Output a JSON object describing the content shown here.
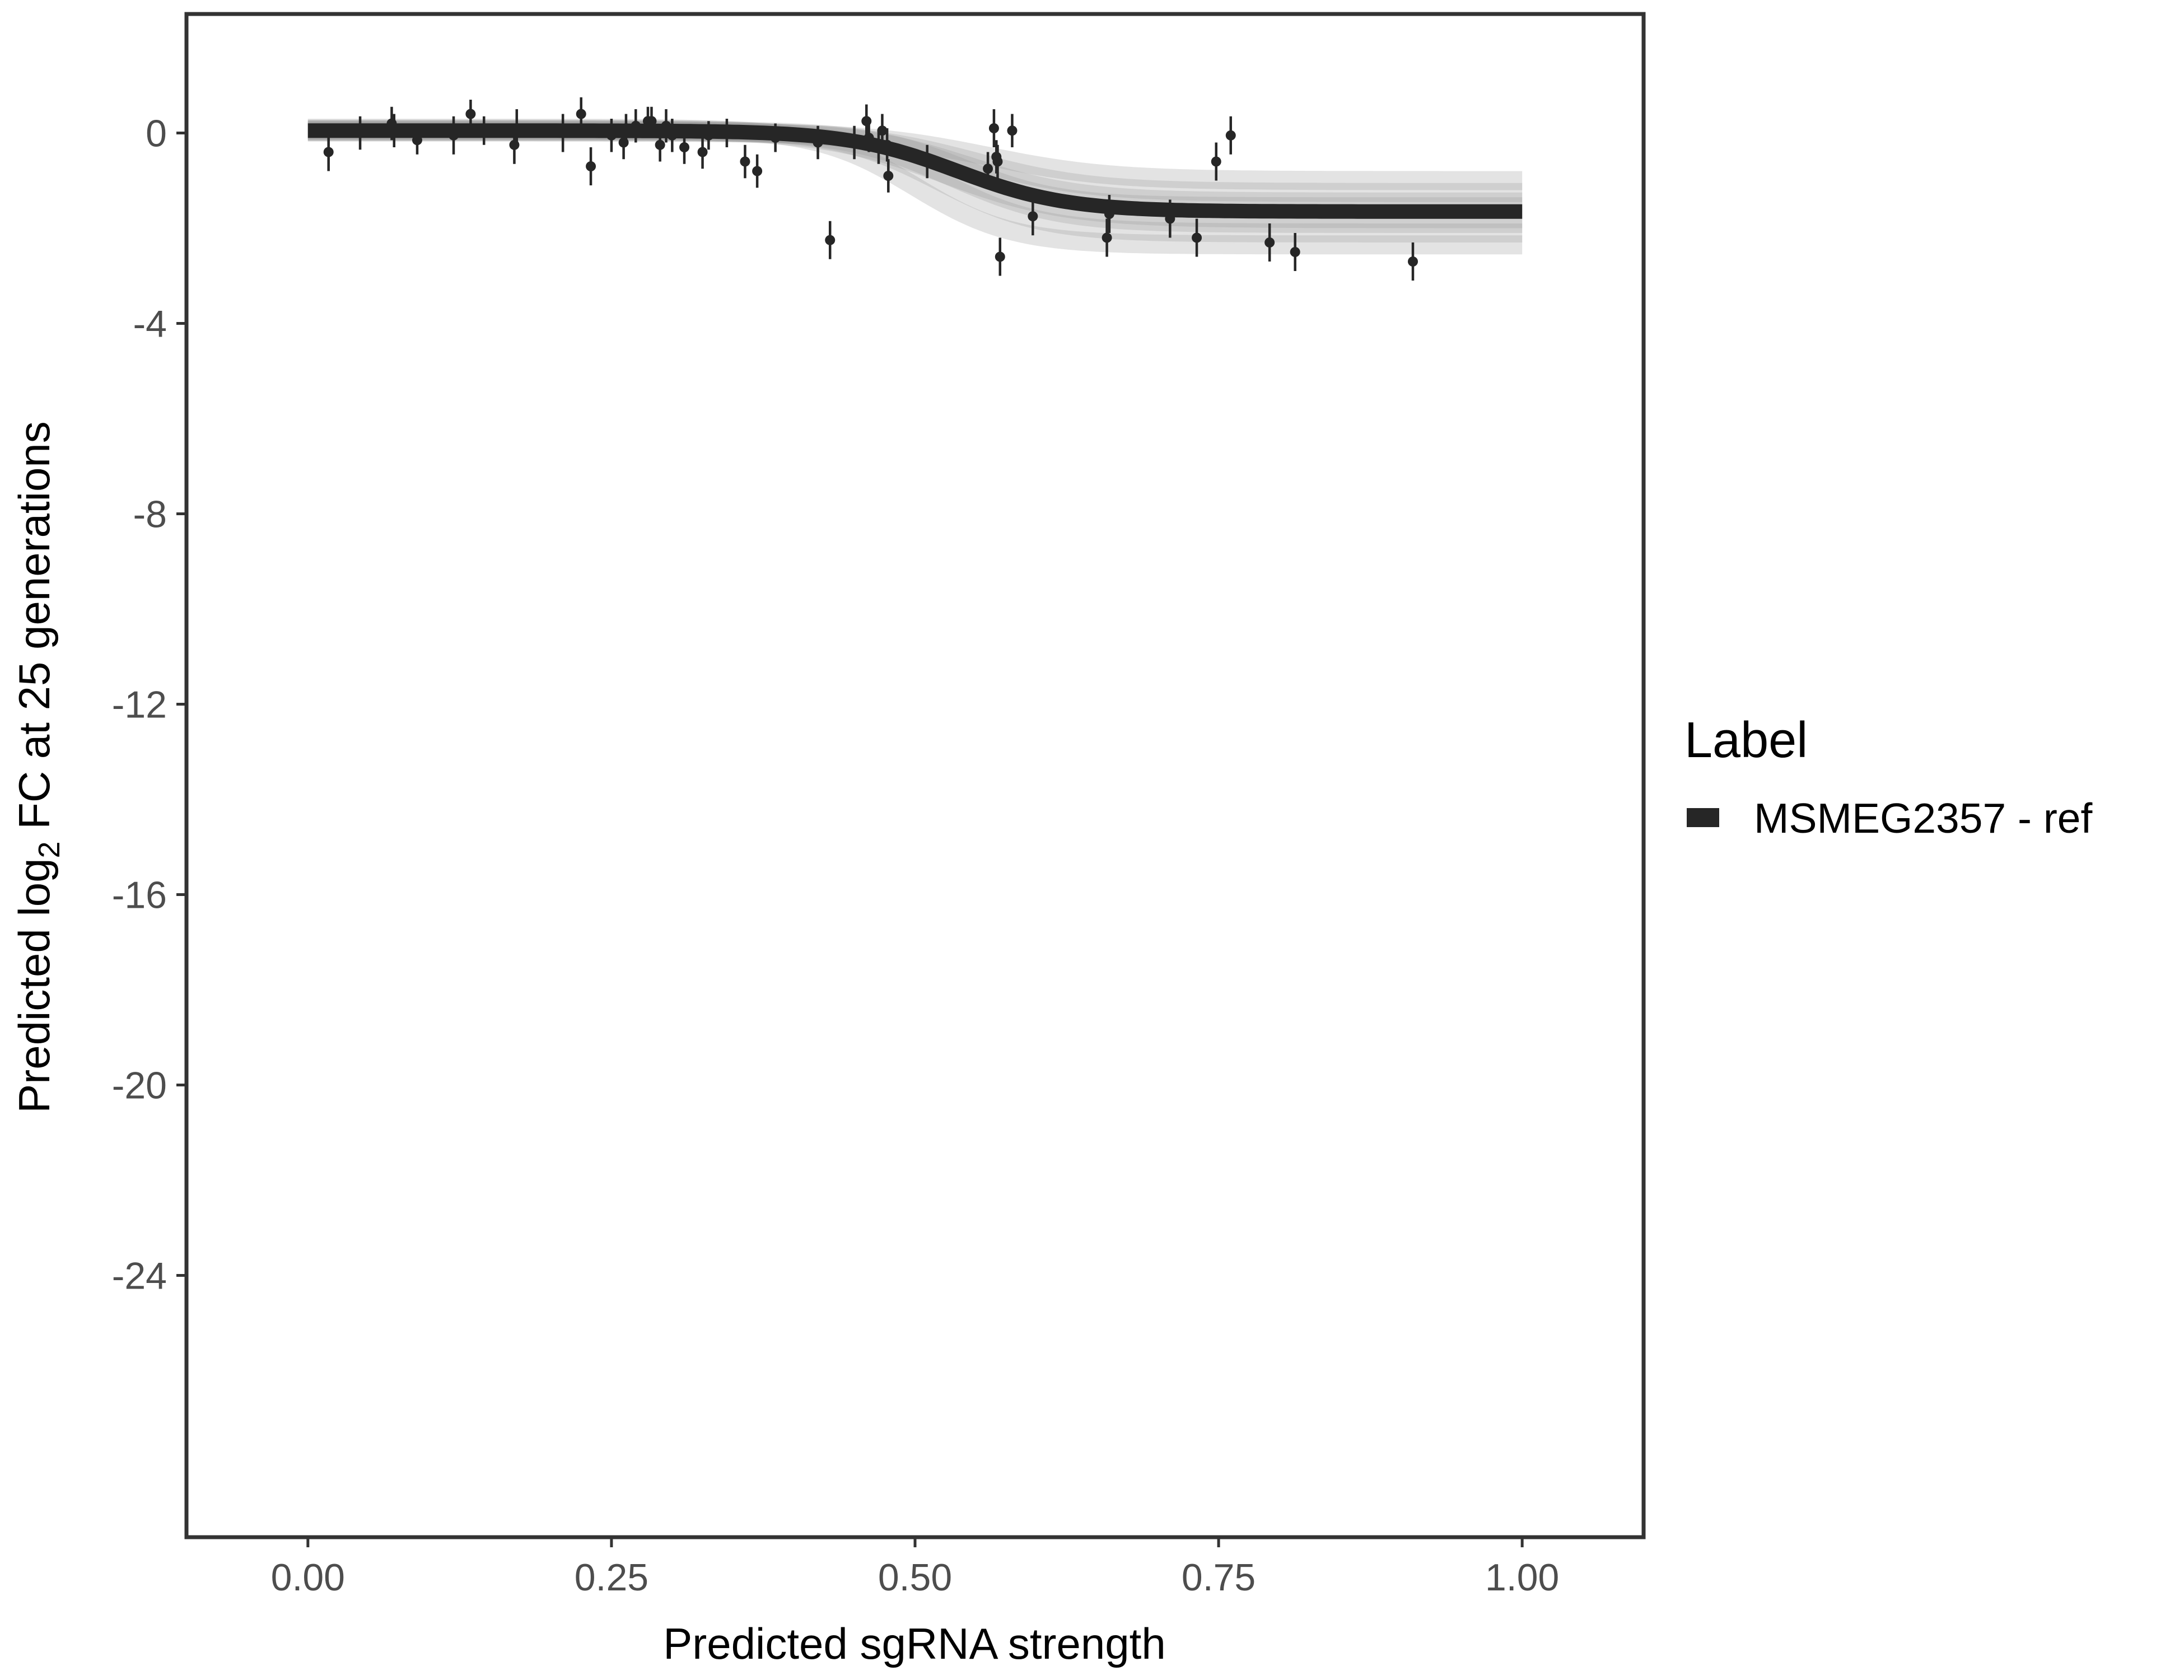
{
  "chart_data": {
    "type": "scatter",
    "title": "",
    "xlabel": "Predicted sgRNA strength",
    "ylabel_prefix": "Predicted  log",
    "ylabel_sub": "2",
    "ylabel_suffix": " FC at 25 generations",
    "xlim": [
      -0.1,
      1.1
    ],
    "ylim": [
      -29.5,
      2.5
    ],
    "x_ticks": [
      0.0,
      0.25,
      0.5,
      0.75,
      1.0
    ],
    "x_tick_labels": [
      "0.00",
      "0.25",
      "0.50",
      "0.75",
      "1.00"
    ],
    "y_ticks": [
      0,
      -4,
      -8,
      -12,
      -16,
      -20,
      -24
    ],
    "y_tick_labels": [
      "0",
      "-4",
      "-8",
      "-12",
      "-16",
      "-20",
      "-24"
    ],
    "grid": false,
    "legend": {
      "title": "Label",
      "position": "right",
      "entries": [
        {
          "name": "MSMEG2357 - ref",
          "color": "#262626"
        }
      ]
    },
    "fit_curve": {
      "model": "sigmoid",
      "upper": 0.05,
      "lower": -1.65,
      "midpoint": 0.535,
      "scale": 0.045,
      "x_range": [
        0.0,
        1.0
      ],
      "color": "#262626",
      "band_color": "#9a9a9a"
    },
    "series": [
      {
        "name": "MSMEG2357 - ref",
        "color": "#262626",
        "points": [
          {
            "x": 0.017,
            "y": -0.4,
            "err": 0.4
          },
          {
            "x": 0.043,
            "y": 0.0,
            "err": 0.35
          },
          {
            "x": 0.069,
            "y": 0.2,
            "err": 0.35
          },
          {
            "x": 0.071,
            "y": 0.05,
            "err": 0.35
          },
          {
            "x": 0.09,
            "y": -0.15,
            "err": 0.3
          },
          {
            "x": 0.12,
            "y": -0.05,
            "err": 0.4
          },
          {
            "x": 0.134,
            "y": 0.4,
            "err": 0.3
          },
          {
            "x": 0.145,
            "y": 0.05,
            "err": 0.3
          },
          {
            "x": 0.17,
            "y": -0.25,
            "err": 0.4
          },
          {
            "x": 0.172,
            "y": 0.1,
            "err": 0.4
          },
          {
            "x": 0.21,
            "y": 0.0,
            "err": 0.4
          },
          {
            "x": 0.225,
            "y": 0.4,
            "err": 0.35
          },
          {
            "x": 0.233,
            "y": -0.7,
            "err": 0.4
          },
          {
            "x": 0.25,
            "y": -0.05,
            "err": 0.35
          },
          {
            "x": 0.26,
            "y": -0.2,
            "err": 0.35
          },
          {
            "x": 0.262,
            "y": 0.1,
            "err": 0.3
          },
          {
            "x": 0.27,
            "y": 0.15,
            "err": 0.35
          },
          {
            "x": 0.28,
            "y": 0.25,
            "err": 0.3
          },
          {
            "x": 0.283,
            "y": 0.25,
            "err": 0.3
          },
          {
            "x": 0.29,
            "y": -0.25,
            "err": 0.35
          },
          {
            "x": 0.295,
            "y": 0.15,
            "err": 0.35
          },
          {
            "x": 0.3,
            "y": -0.05,
            "err": 0.35
          },
          {
            "x": 0.31,
            "y": -0.3,
            "err": 0.35
          },
          {
            "x": 0.325,
            "y": -0.4,
            "err": 0.35
          },
          {
            "x": 0.33,
            "y": -0.05,
            "err": 0.3
          },
          {
            "x": 0.345,
            "y": 0.0,
            "err": 0.3
          },
          {
            "x": 0.36,
            "y": -0.6,
            "err": 0.35
          },
          {
            "x": 0.37,
            "y": -0.8,
            "err": 0.35
          },
          {
            "x": 0.385,
            "y": -0.1,
            "err": 0.3
          },
          {
            "x": 0.42,
            "y": -0.2,
            "err": 0.35
          },
          {
            "x": 0.43,
            "y": -2.25,
            "err": 0.4
          },
          {
            "x": 0.45,
            "y": -0.2,
            "err": 0.35
          },
          {
            "x": 0.46,
            "y": 0.25,
            "err": 0.35
          },
          {
            "x": 0.462,
            "y": -0.1,
            "err": 0.3
          },
          {
            "x": 0.47,
            "y": -0.3,
            "err": 0.35
          },
          {
            "x": 0.473,
            "y": 0.05,
            "err": 0.35
          },
          {
            "x": 0.477,
            "y": -0.25,
            "err": 0.35
          },
          {
            "x": 0.478,
            "y": -0.9,
            "err": 0.35
          },
          {
            "x": 0.51,
            "y": -0.6,
            "err": 0.35
          },
          {
            "x": 0.56,
            "y": -0.75,
            "err": 0.35
          },
          {
            "x": 0.565,
            "y": 0.1,
            "err": 0.4
          },
          {
            "x": 0.567,
            "y": -0.5,
            "err": 0.35
          },
          {
            "x": 0.568,
            "y": -0.6,
            "err": 0.35
          },
          {
            "x": 0.57,
            "y": -2.6,
            "err": 0.4
          },
          {
            "x": 0.58,
            "y": 0.05,
            "err": 0.35
          },
          {
            "x": 0.597,
            "y": -1.75,
            "err": 0.4
          },
          {
            "x": 0.658,
            "y": -2.2,
            "err": 0.4
          },
          {
            "x": 0.66,
            "y": -1.7,
            "err": 0.4
          },
          {
            "x": 0.71,
            "y": -1.8,
            "err": 0.4
          },
          {
            "x": 0.732,
            "y": -2.2,
            "err": 0.4
          },
          {
            "x": 0.748,
            "y": -0.6,
            "err": 0.4
          },
          {
            "x": 0.76,
            "y": -0.05,
            "err": 0.4
          },
          {
            "x": 0.792,
            "y": -2.3,
            "err": 0.4
          },
          {
            "x": 0.813,
            "y": -2.5,
            "err": 0.4
          },
          {
            "x": 0.91,
            "y": -2.7,
            "err": 0.4
          }
        ]
      }
    ]
  }
}
